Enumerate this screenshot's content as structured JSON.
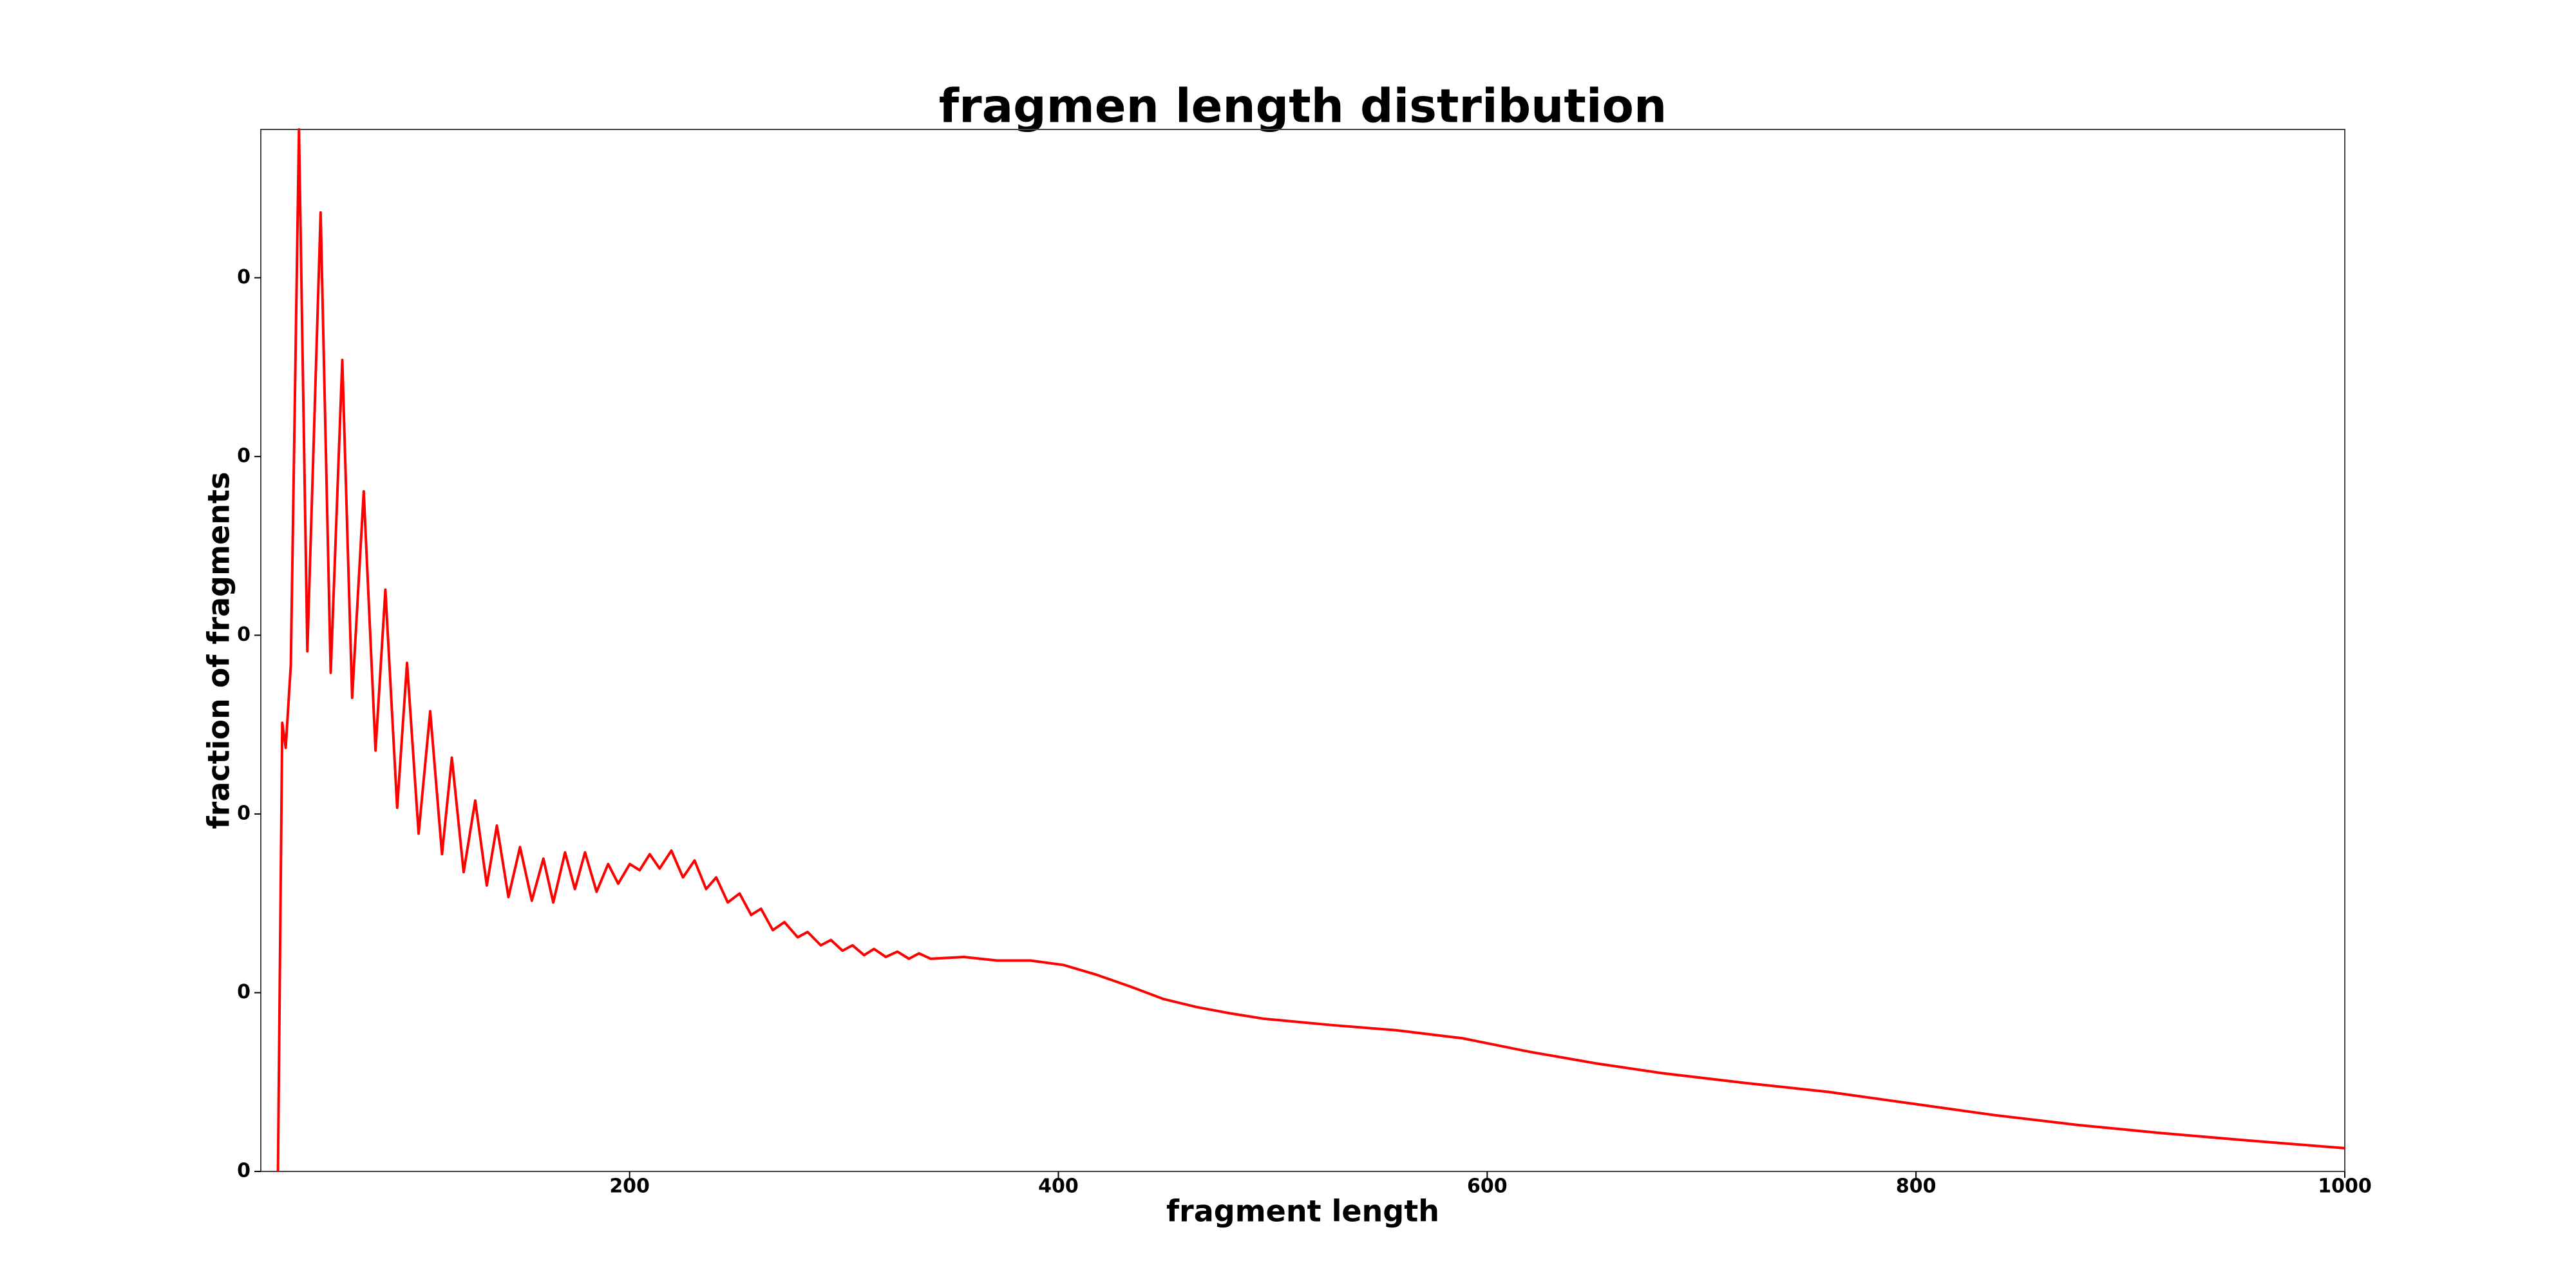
{
  "chart_data": {
    "type": "line",
    "title": "fragmen length distribution",
    "x_label": "fragment length",
    "y_label": "fraction of fragments",
    "xlim": [
      28,
      1000
    ],
    "ylim": [
      0,
      0.01166
    ],
    "xticks": [
      200,
      400,
      600,
      800,
      1000
    ],
    "yticks": [
      {
        "value": 0,
        "label": "0"
      },
      {
        "value": 0.002,
        "label": "0"
      },
      {
        "value": 0.004,
        "label": "0"
      },
      {
        "value": 0.006,
        "label": "0"
      },
      {
        "value": 0.008,
        "label": "0"
      },
      {
        "value": 0.01,
        "label": "0"
      }
    ],
    "series": [
      {
        "color": "#ff0000",
        "x": [
          36,
          38,
          39.6,
          42,
          45.8,
          49.7,
          55.9,
          60.6,
          66,
          70.6,
          76,
          81.5,
          86.1,
          91.6,
          96.2,
          101.6,
          107,
          112.5,
          117.1,
          122.6,
          128,
          133.4,
          138.1,
          143.5,
          148.9,
          154.4,
          159.8,
          164.4,
          169.9,
          174.5,
          179.2,
          184.6,
          190,
          194.7,
          200.1,
          204.7,
          209.4,
          214,
          219.5,
          224.9,
          230.3,
          235.7,
          240.4,
          245.8,
          251.3,
          256.7,
          261.3,
          266.8,
          272.2,
          278.4,
          283,
          289.2,
          293.9,
          299.3,
          304,
          309.4,
          314,
          319.5,
          324.9,
          330.3,
          335,
          340.4,
          355.9,
          371.4,
          386.9,
          402.4,
          417.9,
          433.4,
          448.9,
          464.4,
          479.9,
          495.4,
          526.4,
          557.5,
          588.5,
          619.5,
          650.5,
          681.5,
          720.3,
          759.1,
          797.8,
          836.6,
          875.4,
          914.1,
          952.9,
          1000
        ],
        "values": [
          0,
          0.00502,
          0.00474,
          0.00567,
          0.01166,
          0.00582,
          0.01073,
          0.00558,
          0.00908,
          0.0053,
          0.00761,
          0.00471,
          0.00651,
          0.00407,
          0.00569,
          0.00378,
          0.00515,
          0.00355,
          0.00463,
          0.00335,
          0.00415,
          0.0032,
          0.00387,
          0.00307,
          0.00363,
          0.00303,
          0.0035,
          0.00301,
          0.00357,
          0.00316,
          0.00357,
          0.00313,
          0.00344,
          0.00322,
          0.00344,
          0.00337,
          0.00355,
          0.00339,
          0.00359,
          0.00329,
          0.00348,
          0.00316,
          0.00329,
          0.00301,
          0.00311,
          0.00287,
          0.00294,
          0.0027,
          0.00279,
          0.00262,
          0.00268,
          0.00253,
          0.00259,
          0.00247,
          0.00253,
          0.00242,
          0.00249,
          0.0024,
          0.00246,
          0.00238,
          0.00244,
          0.00238,
          0.0024,
          0.00236,
          0.00236,
          0.00231,
          0.0022,
          0.00207,
          0.00193,
          0.00184,
          0.00177,
          0.00171,
          0.00164,
          0.00158,
          0.00149,
          0.00134,
          0.00121,
          0.0011,
          0.00099,
          0.00089,
          0.00076,
          0.00063,
          0.00052,
          0.00043,
          0.00035,
          0.00026
        ]
      }
    ]
  }
}
